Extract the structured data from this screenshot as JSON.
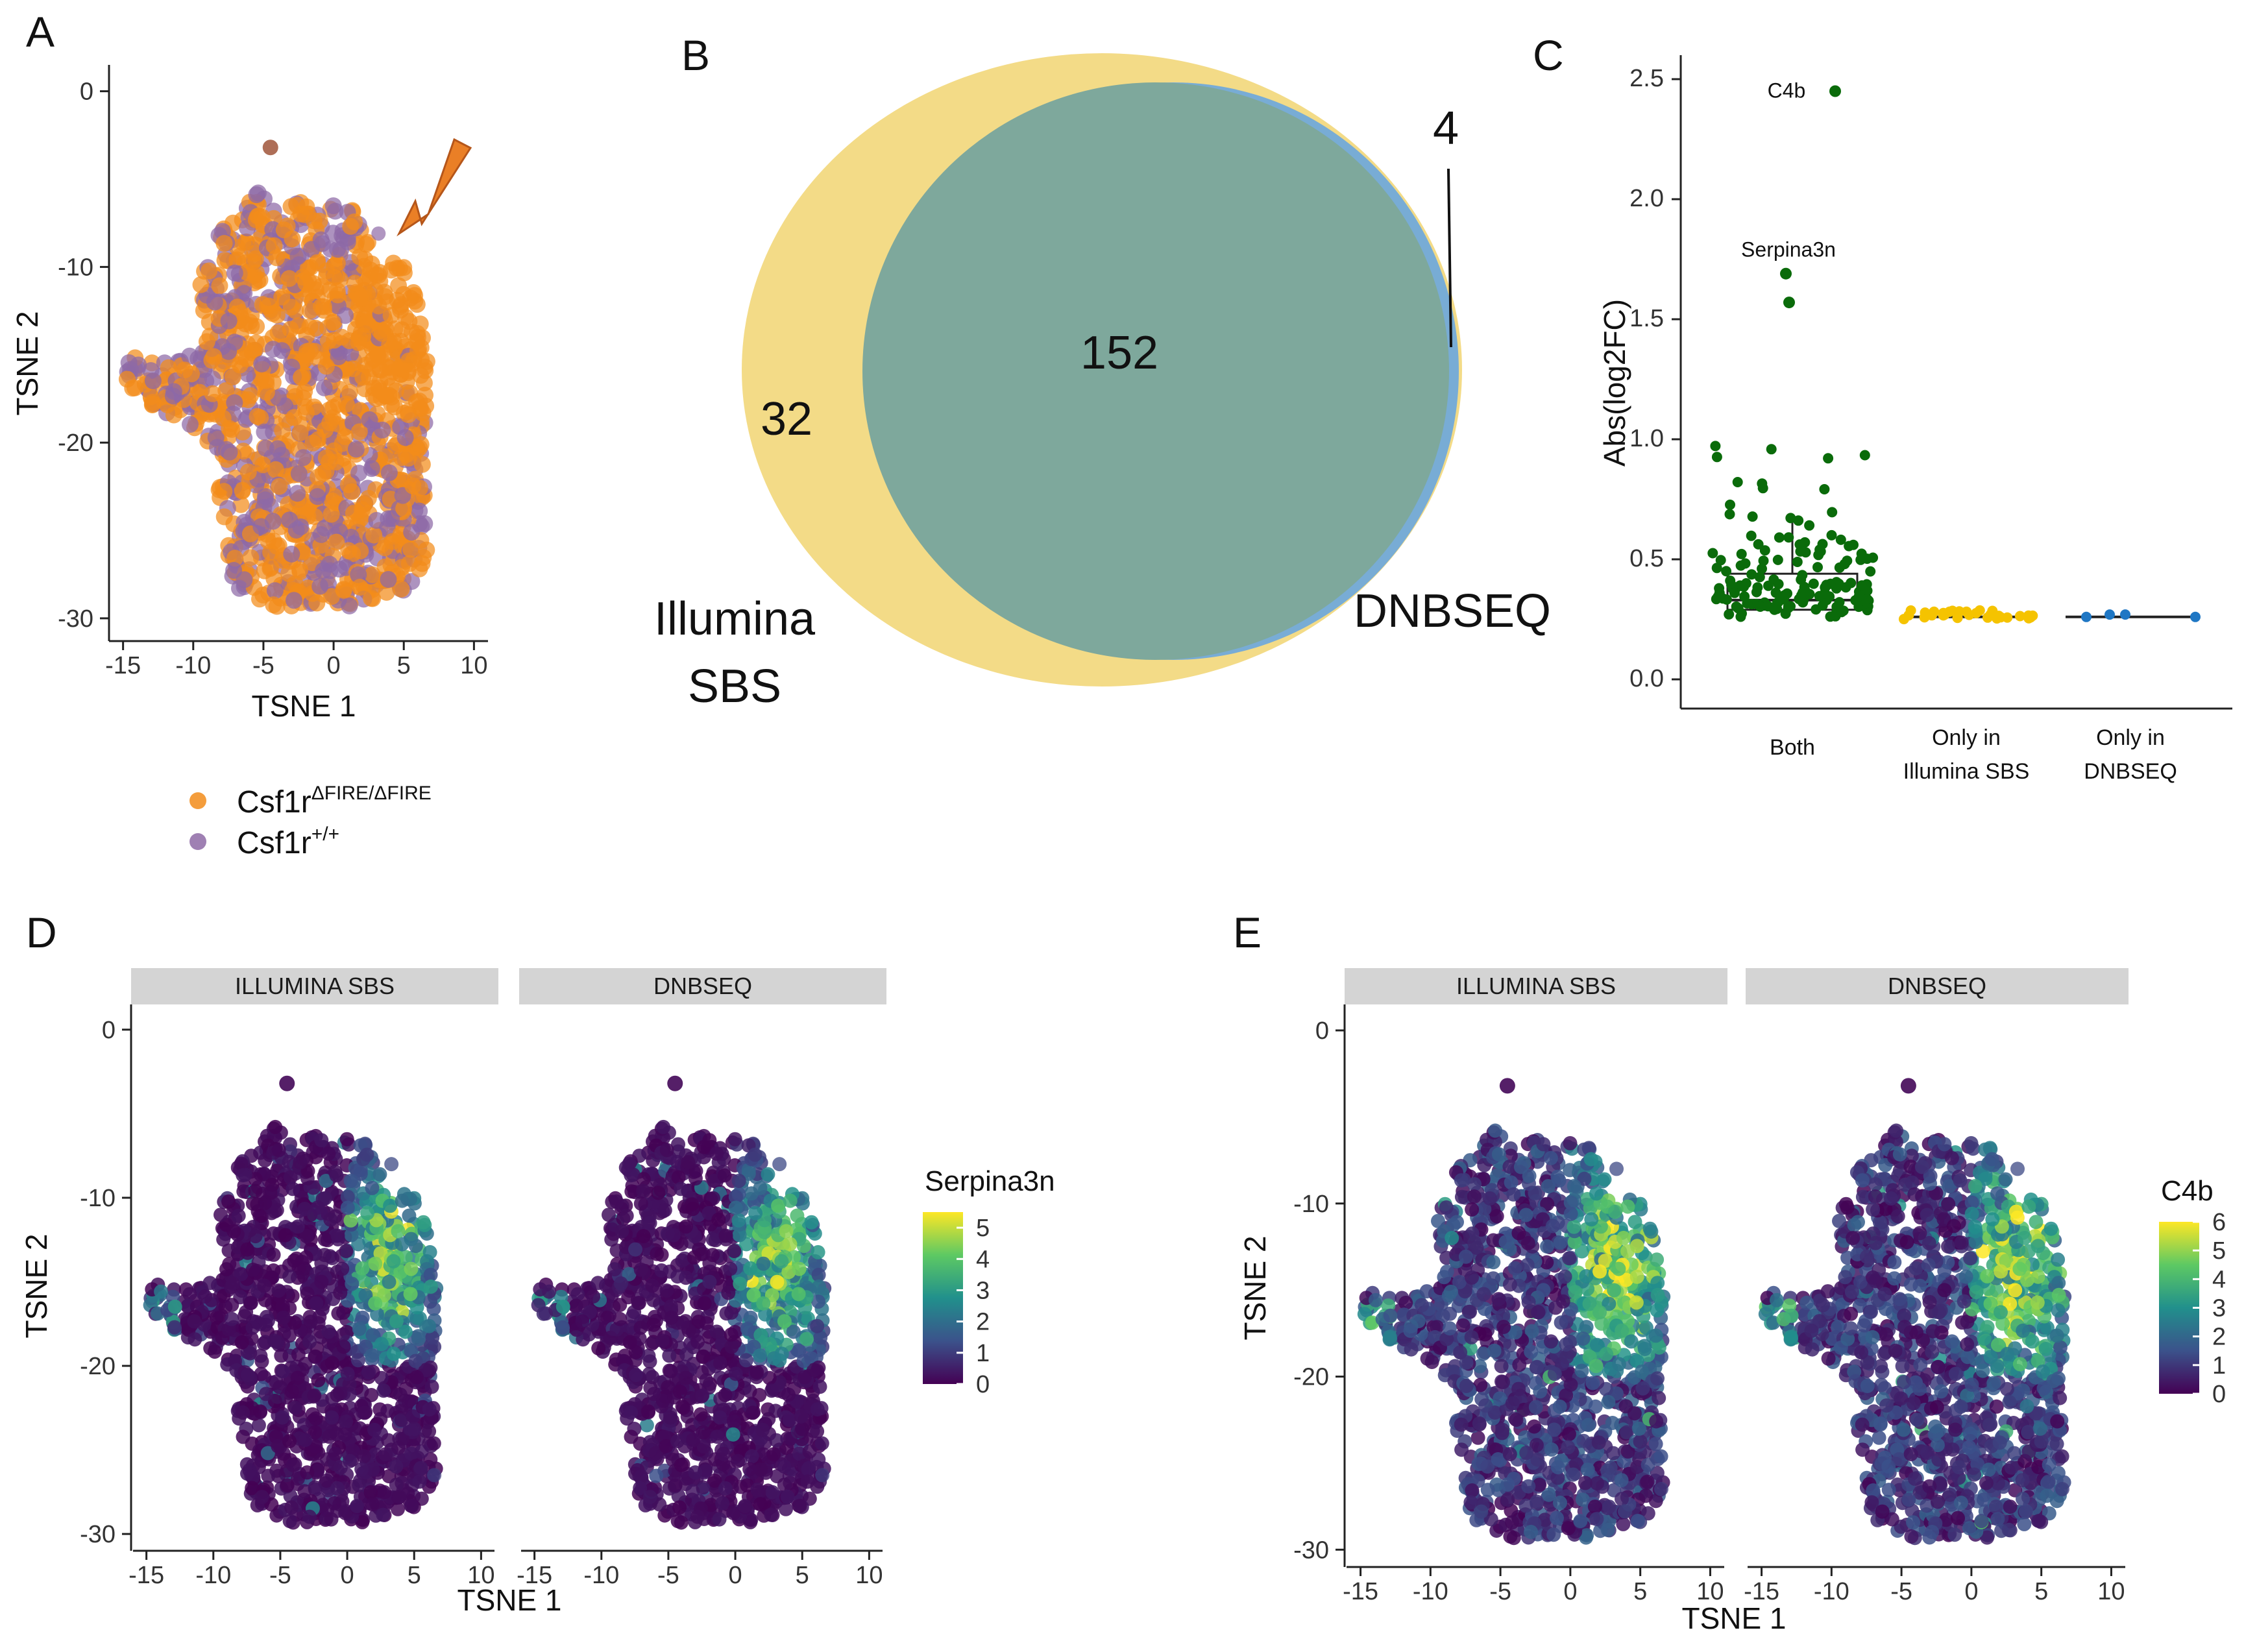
{
  "panel_labels": [
    "A",
    "B",
    "C",
    "D",
    "E"
  ],
  "colors": {
    "orange": "#f28c1a",
    "purple": "#8e6aa6",
    "venn_yellow": "#f2d77a",
    "venn_blue": "#6aa6de",
    "venn_overlap": "#7ea89c",
    "c_both": "#0a6b0a",
    "c_illumina": "#f5c300",
    "c_dnbseq": "#1f77c4"
  },
  "chart_data": [
    {
      "id": "A",
      "type": "scatter",
      "title": "",
      "xlabel": "TSNE 1",
      "ylabel": "TSNE 2",
      "xlim": [
        -16,
        11
      ],
      "ylim": [
        -31,
        1.5
      ],
      "xticks": [
        -15,
        -10,
        -5,
        0,
        5,
        10
      ],
      "yticks": [
        0,
        -10,
        -20,
        -30
      ],
      "series": [
        {
          "name": "Csf1rΔFIRE/ΔFIRE",
          "label_base": "Csf1r",
          "label_sup": "ΔFIRE/ΔFIRE",
          "color": "#f28c1a"
        },
        {
          "name": "Csf1r+/+",
          "label_base": "Csf1r",
          "label_sup": "+/+",
          "color": "#8e6aa6"
        }
      ],
      "annotation": "arrow pointing to the Csf1rΔFIRE/ΔFIRE-enriched cluster near (4, -8)",
      "legend_position": "bottom"
    },
    {
      "id": "B",
      "type": "venn",
      "sets": [
        "Illumina SBS",
        "DNBSEQ"
      ],
      "set_labels": [
        [
          "Illumina",
          "SBS"
        ],
        [
          "DNBSEQ"
        ]
      ],
      "only_illumina": 32,
      "both": 152,
      "only_dnbseq": 4
    },
    {
      "id": "C",
      "type": "scatter",
      "xlabel": "",
      "ylabel": "Abs(log2FC)",
      "ylim": [
        0,
        2.6
      ],
      "yticks": [
        0.0,
        0.5,
        1.0,
        1.5,
        2.0,
        2.5
      ],
      "ytick_labels": [
        "0.0",
        "0.5",
        "1.0",
        "1.5",
        "2.0",
        "2.5"
      ],
      "categories": [
        "Both",
        "Only in Illumina SBS",
        "Only in DNBSEQ"
      ],
      "category_labels": [
        [
          "Both"
        ],
        [
          "Only in",
          "Illumina SBS"
        ],
        [
          "Only in",
          "DNBSEQ"
        ]
      ],
      "category_colors": [
        "#0a6b0a",
        "#f5c300",
        "#1f77c4"
      ],
      "point_counts": [
        152,
        32,
        4
      ],
      "boxplot": [
        {
          "category": "Both",
          "q1": 0.29,
          "median": 0.33,
          "q3": 0.44,
          "whisker_high": 0.66
        },
        {
          "category": "Only in Illumina SBS",
          "median": 0.26
        },
        {
          "category": "Only in DNBSEQ",
          "median": 0.26
        }
      ],
      "highlighted_points": [
        {
          "gene": "C4b",
          "category": "Both",
          "value": 2.45
        },
        {
          "gene": "Serpina3n",
          "category": "Both",
          "value": 1.69
        },
        {
          "gene": "",
          "category": "Both",
          "value": 1.57
        }
      ],
      "dnbseq_values": [
        0.26,
        0.27,
        0.27,
        0.26
      ]
    },
    {
      "id": "D",
      "type": "scatter",
      "facets": [
        "ILLUMINA SBS",
        "DNBSEQ"
      ],
      "xlabel": "TSNE 1",
      "ylabel": "TSNE 2",
      "xlim": [
        -16,
        11
      ],
      "ylim": [
        -31,
        1.5
      ],
      "xticks": [
        -15,
        -10,
        -5,
        0,
        5,
        10
      ],
      "yticks": [
        0,
        -10,
        -20,
        -30
      ],
      "color_variable": "Serpina3n",
      "color_range": [
        0,
        5.5
      ],
      "colorbar_ticks": [
        5,
        4,
        3,
        2,
        1,
        0
      ]
    },
    {
      "id": "E",
      "type": "scatter",
      "facets": [
        "ILLUMINA SBS",
        "DNBSEQ"
      ],
      "xlabel": "TSNE 1",
      "ylabel": "TSNE 2",
      "xlim": [
        -16,
        11
      ],
      "ylim": [
        -31,
        1.5
      ],
      "xticks": [
        -15,
        -10,
        -5,
        0,
        5,
        10
      ],
      "yticks": [
        0,
        -10,
        -20,
        -30
      ],
      "color_variable": "C4b",
      "color_range": [
        0,
        6
      ],
      "colorbar_ticks": [
        6,
        5,
        4,
        3,
        2,
        1,
        0
      ]
    }
  ]
}
